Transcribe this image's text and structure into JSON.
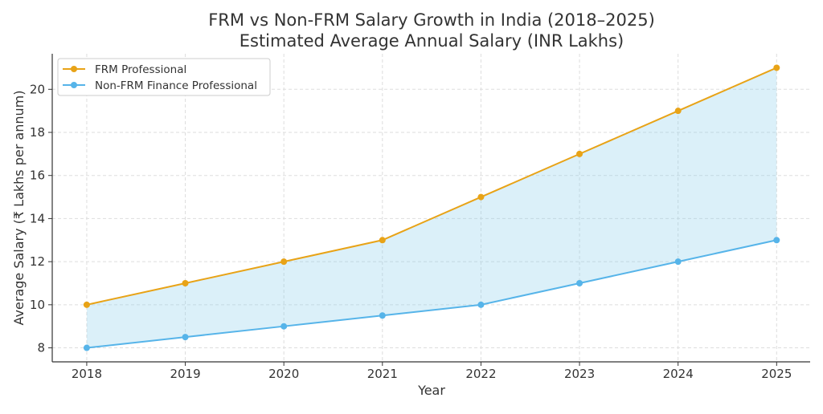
{
  "chart_data": {
    "type": "line",
    "title": "FRM vs Non-FRM Salary Growth in India (2018–2025)",
    "subtitle": "Estimated Average Annual Salary (INR Lakhs)",
    "xlabel": "Year",
    "ylabel": "Average Salary (₹ Lakhs per annum)",
    "x": [
      2018,
      2019,
      2020,
      2021,
      2022,
      2023,
      2024,
      2025
    ],
    "xlim": [
      2017.65,
      2025.34
    ],
    "ylim": [
      7.35,
      21.65
    ],
    "yticks": [
      8,
      10,
      12,
      14,
      16,
      18,
      20
    ],
    "grid": true,
    "legend_position": "top-left",
    "fill_between": {
      "color": "#87ceeb",
      "opacity": 0.3
    },
    "series": [
      {
        "name": "FRM Professional",
        "color": "#e8a317",
        "values": [
          10,
          11,
          12,
          13,
          15,
          17,
          19,
          21
        ]
      },
      {
        "name": "Non-FRM Finance Professional",
        "color": "#56b4e9",
        "values": [
          8,
          8.5,
          9,
          9.5,
          10,
          11,
          12,
          13
        ]
      }
    ]
  }
}
